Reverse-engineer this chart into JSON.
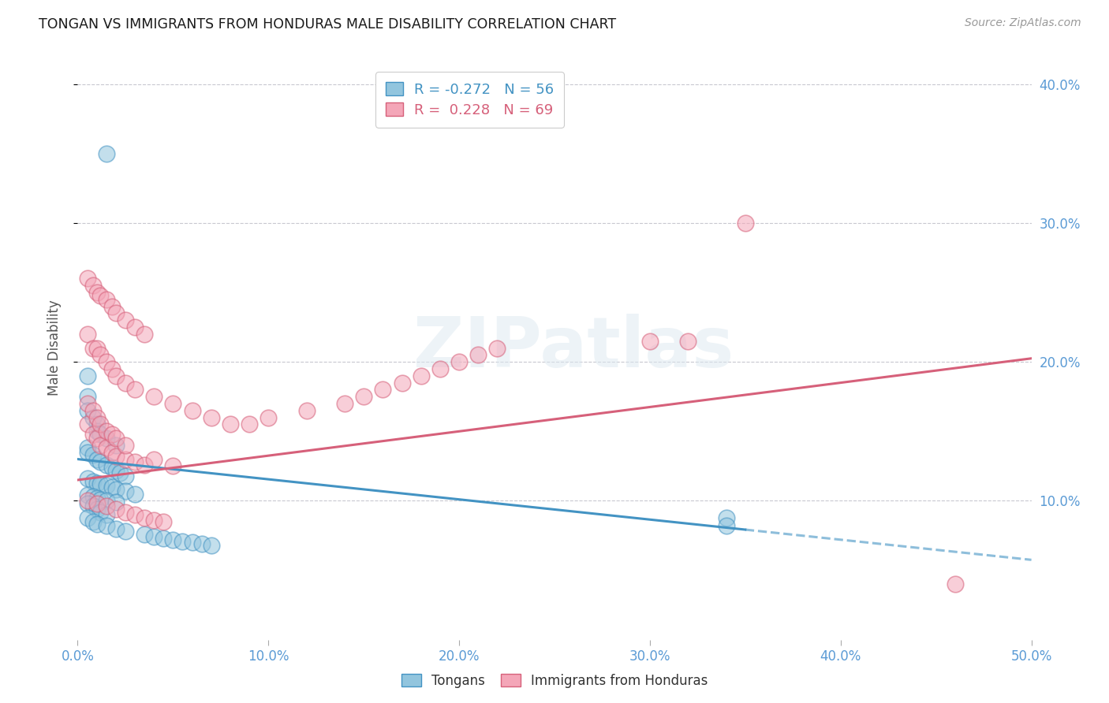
{
  "title": "TONGAN VS IMMIGRANTS FROM HONDURAS MALE DISABILITY CORRELATION CHART",
  "source": "Source: ZipAtlas.com",
  "ylabel": "Male Disability",
  "xlim": [
    0.0,
    0.5
  ],
  "ylim": [
    0.0,
    0.42
  ],
  "xticks": [
    0.0,
    0.1,
    0.2,
    0.3,
    0.4,
    0.5
  ],
  "yticks": [
    0.1,
    0.2,
    0.3,
    0.4
  ],
  "legend1_label": "Tongans",
  "legend2_label": "Immigrants from Honduras",
  "R1": "-0.272",
  "N1": "56",
  "R2": "0.228",
  "N2": "69",
  "color_blue": "#92c5de",
  "color_pink": "#f4a6b8",
  "line_blue": "#4393c3",
  "line_pink": "#d6607a",
  "tick_color": "#5b9bd5",
  "background_color": "#ffffff",
  "watermark": "ZIPatlas",
  "tongans_x": [
    0.015,
    0.005,
    0.005,
    0.005,
    0.008,
    0.01,
    0.01,
    0.012,
    0.015,
    0.02,
    0.005,
    0.005,
    0.008,
    0.01,
    0.012,
    0.015,
    0.018,
    0.02,
    0.022,
    0.025,
    0.005,
    0.008,
    0.01,
    0.012,
    0.015,
    0.018,
    0.02,
    0.025,
    0.03,
    0.005,
    0.008,
    0.01,
    0.012,
    0.015,
    0.02,
    0.005,
    0.008,
    0.01,
    0.012,
    0.015,
    0.005,
    0.008,
    0.01,
    0.015,
    0.02,
    0.025,
    0.035,
    0.04,
    0.045,
    0.05,
    0.055,
    0.06,
    0.065,
    0.07,
    0.34,
    0.34
  ],
  "tongans_y": [
    0.35,
    0.19,
    0.175,
    0.165,
    0.16,
    0.155,
    0.15,
    0.148,
    0.145,
    0.14,
    0.138,
    0.135,
    0.133,
    0.13,
    0.128,
    0.126,
    0.124,
    0.122,
    0.12,
    0.118,
    0.116,
    0.114,
    0.113,
    0.112,
    0.111,
    0.11,
    0.108,
    0.107,
    0.105,
    0.104,
    0.103,
    0.102,
    0.101,
    0.1,
    0.099,
    0.098,
    0.096,
    0.094,
    0.092,
    0.09,
    0.088,
    0.085,
    0.083,
    0.082,
    0.08,
    0.078,
    0.076,
    0.074,
    0.073,
    0.072,
    0.071,
    0.07,
    0.069,
    0.068,
    0.088,
    0.082
  ],
  "honduras_x": [
    0.005,
    0.008,
    0.01,
    0.012,
    0.015,
    0.018,
    0.02,
    0.025,
    0.03,
    0.035,
    0.005,
    0.008,
    0.01,
    0.012,
    0.015,
    0.018,
    0.02,
    0.025,
    0.03,
    0.035,
    0.005,
    0.008,
    0.01,
    0.012,
    0.015,
    0.018,
    0.02,
    0.025,
    0.03,
    0.04,
    0.005,
    0.008,
    0.01,
    0.012,
    0.015,
    0.018,
    0.02,
    0.025,
    0.04,
    0.05,
    0.05,
    0.06,
    0.07,
    0.08,
    0.09,
    0.1,
    0.12,
    0.14,
    0.15,
    0.16,
    0.17,
    0.18,
    0.19,
    0.2,
    0.21,
    0.22,
    0.3,
    0.32,
    0.35,
    0.46,
    0.005,
    0.01,
    0.015,
    0.02,
    0.025,
    0.03,
    0.035,
    0.04,
    0.045
  ],
  "honduras_y": [
    0.155,
    0.148,
    0.145,
    0.14,
    0.138,
    0.135,
    0.132,
    0.13,
    0.128,
    0.126,
    0.26,
    0.255,
    0.25,
    0.248,
    0.245,
    0.24,
    0.235,
    0.23,
    0.225,
    0.22,
    0.22,
    0.21,
    0.21,
    0.205,
    0.2,
    0.195,
    0.19,
    0.185,
    0.18,
    0.175,
    0.17,
    0.165,
    0.16,
    0.155,
    0.15,
    0.148,
    0.145,
    0.14,
    0.13,
    0.125,
    0.17,
    0.165,
    0.16,
    0.155,
    0.155,
    0.16,
    0.165,
    0.17,
    0.175,
    0.18,
    0.185,
    0.19,
    0.195,
    0.2,
    0.205,
    0.21,
    0.215,
    0.215,
    0.3,
    0.04,
    0.1,
    0.098,
    0.096,
    0.094,
    0.092,
    0.09,
    0.088,
    0.086,
    0.085
  ]
}
